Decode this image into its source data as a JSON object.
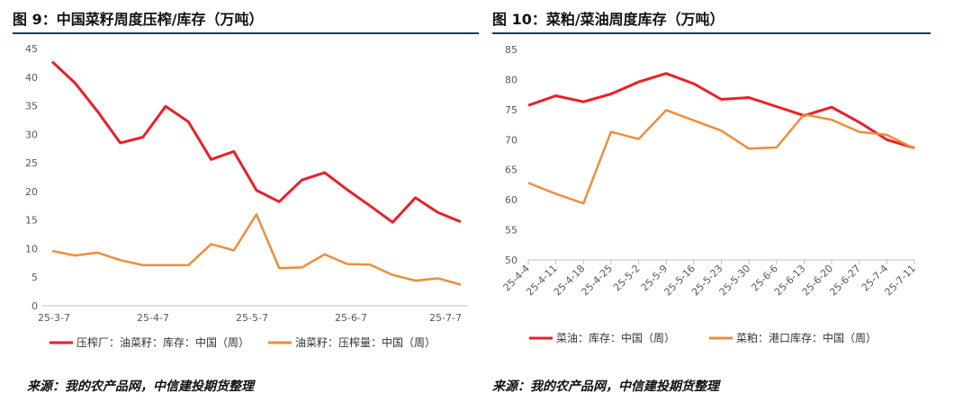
{
  "left_title": "图 9：中国菜籽周度压榨/库存（万吨）",
  "right_title": "图 10：菜粕/菜油周度库存（万吨）",
  "left_source": "来源：我的农产品网，中信建投期货整理",
  "right_source": "来源：我的农产品网，中信建投期货整理",
  "colors": {
    "red": "#e8202a",
    "orange": "#ec8e3b",
    "rule": "#1f3864"
  },
  "chart_data": [
    {
      "type": "line",
      "title": "中国菜籽周度压榨/库存（万吨）",
      "xlabel": "",
      "ylabel": "",
      "ylim": [
        0,
        45
      ],
      "yticks": [
        "0",
        "5",
        "10",
        "15",
        "20",
        "25",
        "30",
        "35",
        "40",
        "45"
      ],
      "x_tick_labels": [
        "25-3-7",
        "25-4-7",
        "25-5-7",
        "25-6-7",
        "25-7-7"
      ],
      "legend_position": "bottom",
      "series": [
        {
          "name": "压榨厂：油菜籽：库存：中国（周）",
          "color": "#e8202a",
          "values": [
            42.7,
            39.0,
            34.0,
            28.5,
            29.5,
            34.9,
            32.2,
            25.6,
            27.0,
            20.2,
            18.2,
            22.0,
            23.3,
            20.3,
            17.5,
            14.6,
            18.9,
            16.3,
            14.7
          ]
        },
        {
          "name": "油菜籽：压榨量：中国（周）",
          "color": "#ec8e3b",
          "values": [
            9.6,
            8.8,
            9.3,
            8.0,
            7.1,
            7.1,
            7.1,
            10.8,
            9.7,
            16.0,
            6.6,
            6.7,
            9.0,
            7.3,
            7.2,
            5.4,
            4.4,
            4.8,
            3.7
          ]
        }
      ]
    },
    {
      "type": "line",
      "title": "菜粕/菜油周度库存（万吨）",
      "xlabel": "",
      "ylabel": "",
      "ylim": [
        50,
        85
      ],
      "yticks": [
        "50",
        "55",
        "60",
        "65",
        "70",
        "75",
        "80",
        "85"
      ],
      "categories": [
        "25-4-4",
        "25-4-11",
        "25-4-18",
        "25-4-25",
        "25-5-2",
        "25-5-9",
        "25-5-16",
        "25-5-23",
        "25-5-30",
        "25-6-6",
        "25-6-13",
        "25-6-20",
        "25-6-27",
        "25-7-4",
        "25-7-11"
      ],
      "legend_position": "bottom",
      "series": [
        {
          "name": "菜油：库存：中国（周）",
          "color": "#e8202a",
          "values": [
            75.7,
            77.3,
            76.3,
            77.6,
            79.6,
            81.0,
            79.3,
            76.7,
            77.0,
            75.5,
            74.0,
            75.4,
            72.9,
            70.0,
            68.6
          ]
        },
        {
          "name": "菜粕：港口库存：中国（周）",
          "color": "#ec8e3b",
          "values": [
            62.8,
            61.0,
            59.4,
            71.3,
            70.1,
            74.9,
            73.2,
            71.5,
            68.5,
            68.7,
            74.2,
            73.3,
            71.3,
            70.8,
            68.5
          ]
        }
      ]
    }
  ]
}
